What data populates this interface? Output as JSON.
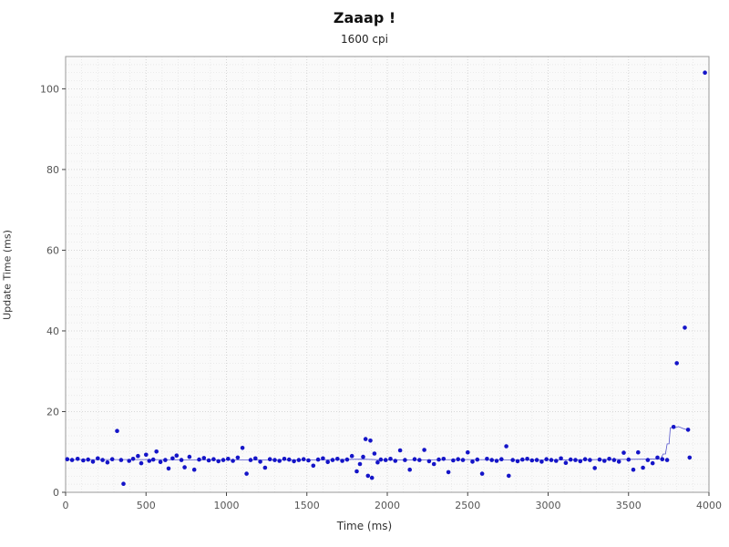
{
  "chart_data": {
    "type": "scatter",
    "title": "Zaaap !",
    "subtitle": "1600 cpi",
    "xlabel": "Time (ms)",
    "ylabel": "Update Time (ms)",
    "xlim": [
      0,
      4000
    ],
    "ylim": [
      0,
      108
    ],
    "xticks": [
      0,
      500,
      1000,
      1500,
      2000,
      2500,
      3000,
      3500,
      4000
    ],
    "yticks": [
      0,
      20,
      40,
      60,
      80,
      100
    ],
    "grid": "fine dotted, minor x every 100 ms, minor y every 2 ms",
    "legend": "none",
    "point_color": "#1414c8",
    "line_color": "#5555cc",
    "plot_bg": "#fafafa",
    "points": [
      [
        10,
        8.2
      ],
      [
        40,
        8.0
      ],
      [
        75,
        8.3
      ],
      [
        110,
        7.9
      ],
      [
        140,
        8.1
      ],
      [
        170,
        7.6
      ],
      [
        200,
        8.4
      ],
      [
        230,
        8.0
      ],
      [
        260,
        7.4
      ],
      [
        290,
        8.2
      ],
      [
        320,
        15.2
      ],
      [
        345,
        8.0
      ],
      [
        360,
        2.1
      ],
      [
        395,
        7.8
      ],
      [
        420,
        8.3
      ],
      [
        450,
        9.0
      ],
      [
        470,
        7.2
      ],
      [
        500,
        9.3
      ],
      [
        520,
        7.8
      ],
      [
        545,
        8.1
      ],
      [
        565,
        10.1
      ],
      [
        590,
        7.5
      ],
      [
        620,
        8.0
      ],
      [
        640,
        5.9
      ],
      [
        665,
        8.4
      ],
      [
        690,
        9.1
      ],
      [
        720,
        8.0
      ],
      [
        740,
        6.2
      ],
      [
        770,
        8.8
      ],
      [
        800,
        5.6
      ],
      [
        830,
        8.1
      ],
      [
        860,
        8.5
      ],
      [
        890,
        7.9
      ],
      [
        920,
        8.2
      ],
      [
        950,
        7.7
      ],
      [
        980,
        8.0
      ],
      [
        1010,
        8.3
      ],
      [
        1040,
        7.8
      ],
      [
        1070,
        8.6
      ],
      [
        1100,
        11.0
      ],
      [
        1125,
        4.6
      ],
      [
        1150,
        8.0
      ],
      [
        1180,
        8.4
      ],
      [
        1210,
        7.6
      ],
      [
        1240,
        6.1
      ],
      [
        1270,
        8.2
      ],
      [
        1300,
        8.0
      ],
      [
        1330,
        7.8
      ],
      [
        1360,
        8.3
      ],
      [
        1390,
        8.1
      ],
      [
        1420,
        7.7
      ],
      [
        1450,
        8.0
      ],
      [
        1480,
        8.2
      ],
      [
        1510,
        7.9
      ],
      [
        1540,
        6.6
      ],
      [
        1570,
        8.1
      ],
      [
        1600,
        8.4
      ],
      [
        1630,
        7.5
      ],
      [
        1660,
        8.0
      ],
      [
        1690,
        8.3
      ],
      [
        1720,
        7.8
      ],
      [
        1750,
        8.1
      ],
      [
        1780,
        9.0
      ],
      [
        1810,
        5.2
      ],
      [
        1830,
        7.0
      ],
      [
        1850,
        8.8
      ],
      [
        1865,
        13.2
      ],
      [
        1880,
        4.1
      ],
      [
        1895,
        12.8
      ],
      [
        1905,
        3.6
      ],
      [
        1920,
        9.6
      ],
      [
        1940,
        7.4
      ],
      [
        1960,
        8.1
      ],
      [
        1990,
        8.0
      ],
      [
        2020,
        8.3
      ],
      [
        2050,
        7.8
      ],
      [
        2080,
        10.4
      ],
      [
        2110,
        8.0
      ],
      [
        2140,
        5.6
      ],
      [
        2170,
        8.2
      ],
      [
        2200,
        8.0
      ],
      [
        2230,
        10.5
      ],
      [
        2260,
        7.7
      ],
      [
        2290,
        7.0
      ],
      [
        2320,
        8.1
      ],
      [
        2350,
        8.3
      ],
      [
        2380,
        5.0
      ],
      [
        2410,
        7.9
      ],
      [
        2440,
        8.2
      ],
      [
        2470,
        8.0
      ],
      [
        2500,
        9.9
      ],
      [
        2530,
        7.6
      ],
      [
        2560,
        8.1
      ],
      [
        2590,
        4.6
      ],
      [
        2620,
        8.3
      ],
      [
        2650,
        8.0
      ],
      [
        2680,
        7.8
      ],
      [
        2710,
        8.2
      ],
      [
        2740,
        11.4
      ],
      [
        2755,
        4.1
      ],
      [
        2780,
        8.0
      ],
      [
        2810,
        7.7
      ],
      [
        2840,
        8.1
      ],
      [
        2870,
        8.3
      ],
      [
        2900,
        7.9
      ],
      [
        2930,
        8.0
      ],
      [
        2960,
        7.6
      ],
      [
        2990,
        8.2
      ],
      [
        3020,
        8.0
      ],
      [
        3050,
        7.8
      ],
      [
        3080,
        8.4
      ],
      [
        3110,
        7.3
      ],
      [
        3140,
        8.1
      ],
      [
        3170,
        8.0
      ],
      [
        3200,
        7.7
      ],
      [
        3230,
        8.2
      ],
      [
        3260,
        8.0
      ],
      [
        3290,
        6.0
      ],
      [
        3320,
        8.1
      ],
      [
        3350,
        7.8
      ],
      [
        3380,
        8.3
      ],
      [
        3410,
        8.0
      ],
      [
        3440,
        7.6
      ],
      [
        3470,
        9.8
      ],
      [
        3500,
        8.1
      ],
      [
        3530,
        5.6
      ],
      [
        3560,
        9.9
      ],
      [
        3590,
        6.1
      ],
      [
        3620,
        8.0
      ],
      [
        3650,
        7.2
      ],
      [
        3680,
        8.6
      ],
      [
        3710,
        8.2
      ],
      [
        3740,
        8.0
      ],
      [
        3780,
        16.2
      ],
      [
        3800,
        32.0
      ],
      [
        3850,
        40.8
      ],
      [
        3870,
        15.5
      ],
      [
        3880,
        8.6
      ],
      [
        3975,
        104.0
      ]
    ],
    "trend_line": [
      [
        0,
        8.1
      ],
      [
        500,
        8.1
      ],
      [
        1000,
        8.0
      ],
      [
        1500,
        8.0
      ],
      [
        1850,
        8.2
      ],
      [
        2000,
        8.0
      ],
      [
        2500,
        8.1
      ],
      [
        3000,
        8.0
      ],
      [
        3600,
        8.2
      ],
      [
        3700,
        8.3
      ],
      [
        3715,
        9.5
      ],
      [
        3730,
        9.5
      ],
      [
        3740,
        12.0
      ],
      [
        3752,
        12.0
      ],
      [
        3760,
        16.0
      ],
      [
        3790,
        16.0
      ],
      [
        3810,
        16.3
      ],
      [
        3840,
        15.8
      ],
      [
        3865,
        15.5
      ]
    ]
  }
}
